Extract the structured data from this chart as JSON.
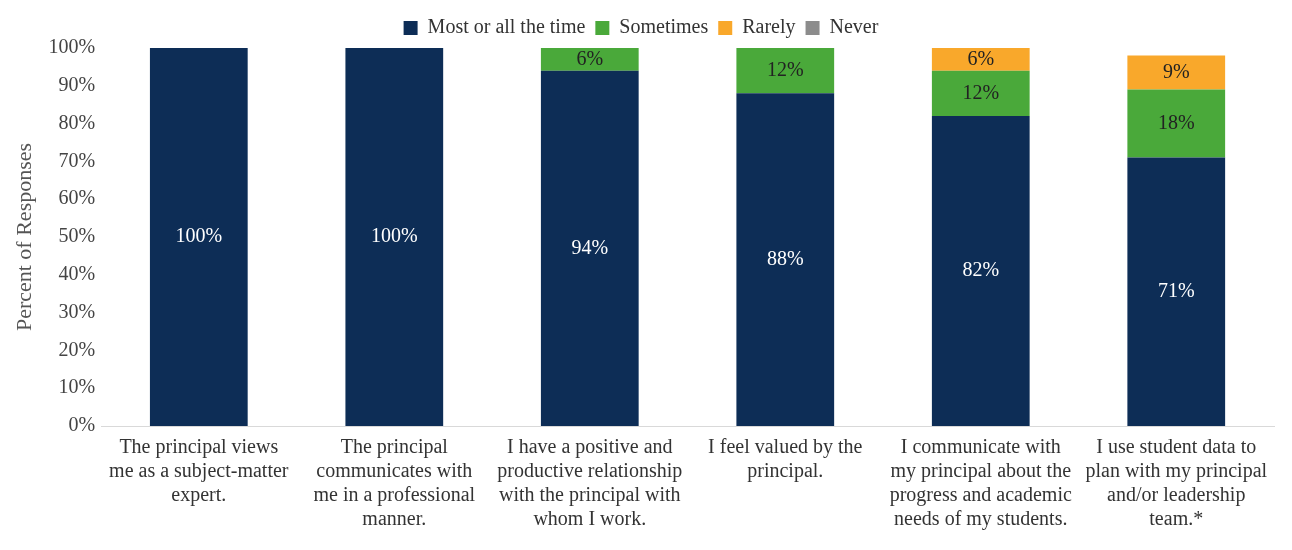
{
  "chart_data": {
    "type": "bar",
    "stacked": true,
    "ylabel": "Percent of Responses",
    "categories": [
      "The principal views me as a subject-matter expert.",
      "The principal communicates with me in a professional manner.",
      "I have a positive and productive relationship with the principal with whom I work.",
      "I feel valued by the principal.",
      "I communicate with my principal about the progress and academic needs of my students.",
      "I use student data to plan with my principal and/or leadership team.*"
    ],
    "series": [
      {
        "name": "Most or all the time",
        "color": "#0d2d56",
        "values": [
          100,
          100,
          94,
          88,
          82,
          71
        ],
        "value_labels": [
          "100%",
          "100%",
          "94%",
          "88%",
          "82%",
          "71%"
        ]
      },
      {
        "name": "Sometimes",
        "color": "#4aa93a",
        "values": [
          0,
          0,
          6,
          12,
          12,
          18
        ],
        "value_labels": [
          null,
          null,
          "6%",
          "12%",
          "12%",
          "18%"
        ]
      },
      {
        "name": "Rarely",
        "color": "#f9a82b",
        "values": [
          0,
          0,
          0,
          0,
          6,
          9
        ],
        "value_labels": [
          null,
          null,
          null,
          null,
          "6%",
          "9%"
        ]
      },
      {
        "name": "Never",
        "color": "#8c8c8c",
        "values": [
          0,
          0,
          0,
          0,
          0,
          0
        ],
        "value_labels": [
          null,
          null,
          null,
          null,
          null,
          null
        ]
      }
    ],
    "ylim": [
      0,
      100
    ],
    "yticks": [
      {
        "value": 0,
        "label": "0%"
      },
      {
        "value": 10,
        "label": "10%"
      },
      {
        "value": 20,
        "label": "20%"
      },
      {
        "value": 30,
        "label": "30%"
      },
      {
        "value": 40,
        "label": "40%"
      },
      {
        "value": 50,
        "label": "50%"
      },
      {
        "value": 60,
        "label": "60%"
      },
      {
        "value": 70,
        "label": "70%"
      },
      {
        "value": 80,
        "label": "80%"
      },
      {
        "value": 90,
        "label": "90%"
      },
      {
        "value": 100,
        "label": "100%"
      }
    ],
    "grid": false,
    "legend": "top"
  }
}
